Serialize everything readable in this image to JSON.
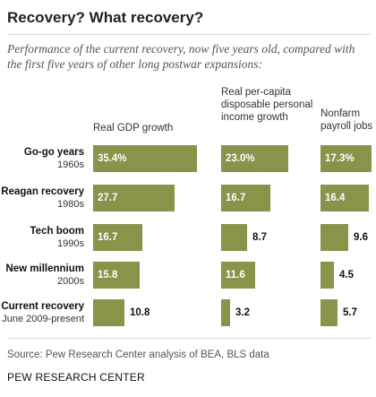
{
  "title": "Recovery? What recovery?",
  "subtitle": "Performance of the current recovery, now five years old, compared with the first five years of other long postwar expansions:",
  "source": "Source: Pew Research Center analysis of BEA, BLS data",
  "brand": "PEW RESEARCH CENTER",
  "colors": {
    "bar": "#8b9249",
    "label_in_bar": "#ffffff",
    "text": "#231f20"
  },
  "chart_data": {
    "type": "bar",
    "orientation": "horizontal",
    "categories": [
      {
        "name": "Go-go years",
        "period": "1960s"
      },
      {
        "name": "Reagan recovery",
        "period": "1980s"
      },
      {
        "name": "Tech boom",
        "period": "1990s"
      },
      {
        "name": "New millennium",
        "period": "2000s"
      },
      {
        "name": "Current recovery",
        "period": "June 2009-present"
      }
    ],
    "series": [
      {
        "name": "Real GDP growth",
        "values": [
          35.4,
          27.7,
          16.7,
          15.8,
          10.8
        ],
        "labels": [
          "35.4%",
          "27.7",
          "16.7",
          "15.8",
          "10.8"
        ]
      },
      {
        "name": "Real per-capita disposable personal income growth",
        "values": [
          23.0,
          16.7,
          8.7,
          11.6,
          3.2
        ],
        "labels": [
          "23.0%",
          "16.7",
          "8.7",
          "11.6",
          "3.2"
        ]
      },
      {
        "name": "Nonfarm payroll jobs",
        "values": [
          17.3,
          16.4,
          9.6,
          4.5,
          5.7
        ],
        "labels": [
          "17.3%",
          "16.4",
          "9.6",
          "4.5",
          "5.7"
        ]
      }
    ]
  }
}
